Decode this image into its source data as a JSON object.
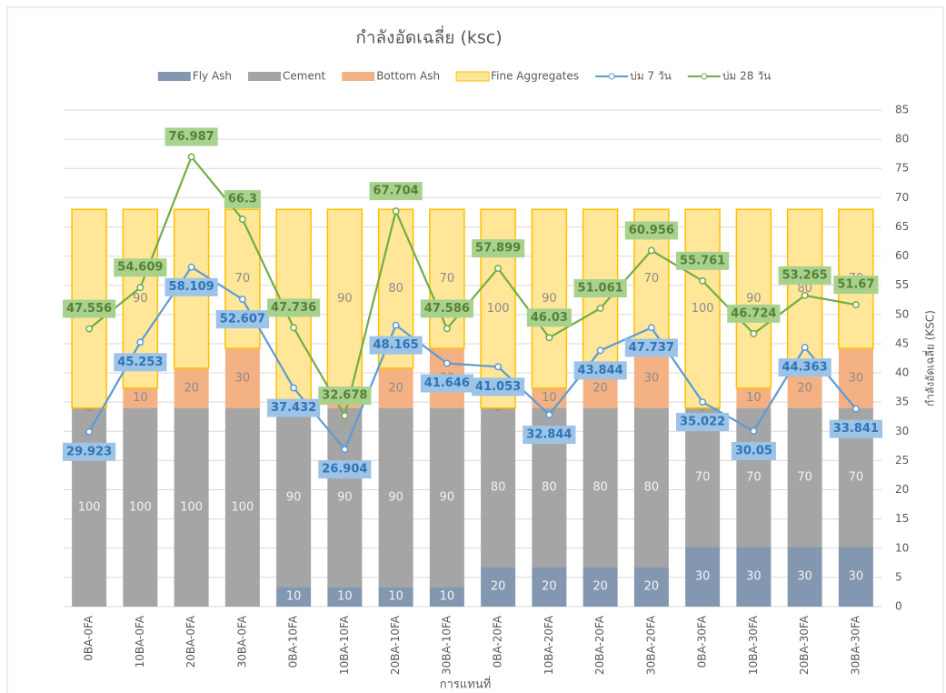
{
  "chart_data": {
    "type": "bar",
    "stacked": true,
    "title": "กำลังอัดเฉลี่ย (ksc)",
    "xlabel": "การแทนที่",
    "y2label": "กำลังอัดเฉลี่ย (KSC)",
    "categories": [
      "0BA-0FA",
      "10BA-0FA",
      "20BA-0FA",
      "30BA-0FA",
      "0BA-10FA",
      "10BA-10FA",
      "20BA-10FA",
      "30BA-10FA",
      "0BA-20FA",
      "10BA-20FA",
      "20BA-20FA",
      "30BA-20FA",
      "0BA-30FA",
      "10BA-30FA",
      "20BA-30FA",
      "30BA-30FA"
    ],
    "ylim": [
      0,
      250
    ],
    "y2lim": [
      0,
      85
    ],
    "y2ticks": [
      0,
      5,
      10,
      15,
      20,
      25,
      30,
      35,
      40,
      45,
      50,
      55,
      60,
      65,
      70,
      75,
      80,
      85
    ],
    "grid": true,
    "legend": "top",
    "series": [
      {
        "name": "Fly Ash",
        "type": "bar",
        "color": "#8497b0",
        "values": [
          0,
          0,
          0,
          0,
          10,
          10,
          10,
          10,
          20,
          20,
          20,
          20,
          30,
          30,
          30,
          30
        ]
      },
      {
        "name": "Cement",
        "type": "bar",
        "color": "#a5a5a5",
        "values": [
          100,
          100,
          100,
          100,
          90,
          90,
          90,
          90,
          80,
          80,
          80,
          80,
          70,
          70,
          70,
          70
        ]
      },
      {
        "name": "Bottom Ash",
        "type": "bar",
        "color": "#f4b183",
        "values": [
          0,
          10,
          20,
          30,
          0,
          10,
          20,
          30,
          0,
          10,
          20,
          30,
          0,
          10,
          20,
          30
        ]
      },
      {
        "name": "Fine Aggregates",
        "type": "bar",
        "color": "#ffe699",
        "values": [
          100,
          90,
          80,
          70,
          100,
          90,
          80,
          70,
          100,
          90,
          80,
          70,
          100,
          90,
          80,
          70
        ]
      },
      {
        "name": "บ่ม 7 วัน",
        "type": "line",
        "axis": "y2",
        "color": "#5b9bd5",
        "values": [
          29.923,
          45.253,
          58.109,
          52.607,
          37.432,
          26.904,
          48.165,
          41.646,
          41.053,
          32.844,
          43.844,
          47.737,
          35.022,
          30.05,
          44.363,
          33.841
        ]
      },
      {
        "name": "บ่ม 28 วัน",
        "type": "line",
        "axis": "y2",
        "color": "#70ad47",
        "values": [
          47.556,
          54.609,
          76.987,
          66.3,
          47.736,
          32.678,
          67.704,
          47.586,
          57.899,
          46.03,
          51.061,
          60.956,
          55.761,
          46.724,
          53.265,
          51.67
        ]
      }
    ]
  }
}
